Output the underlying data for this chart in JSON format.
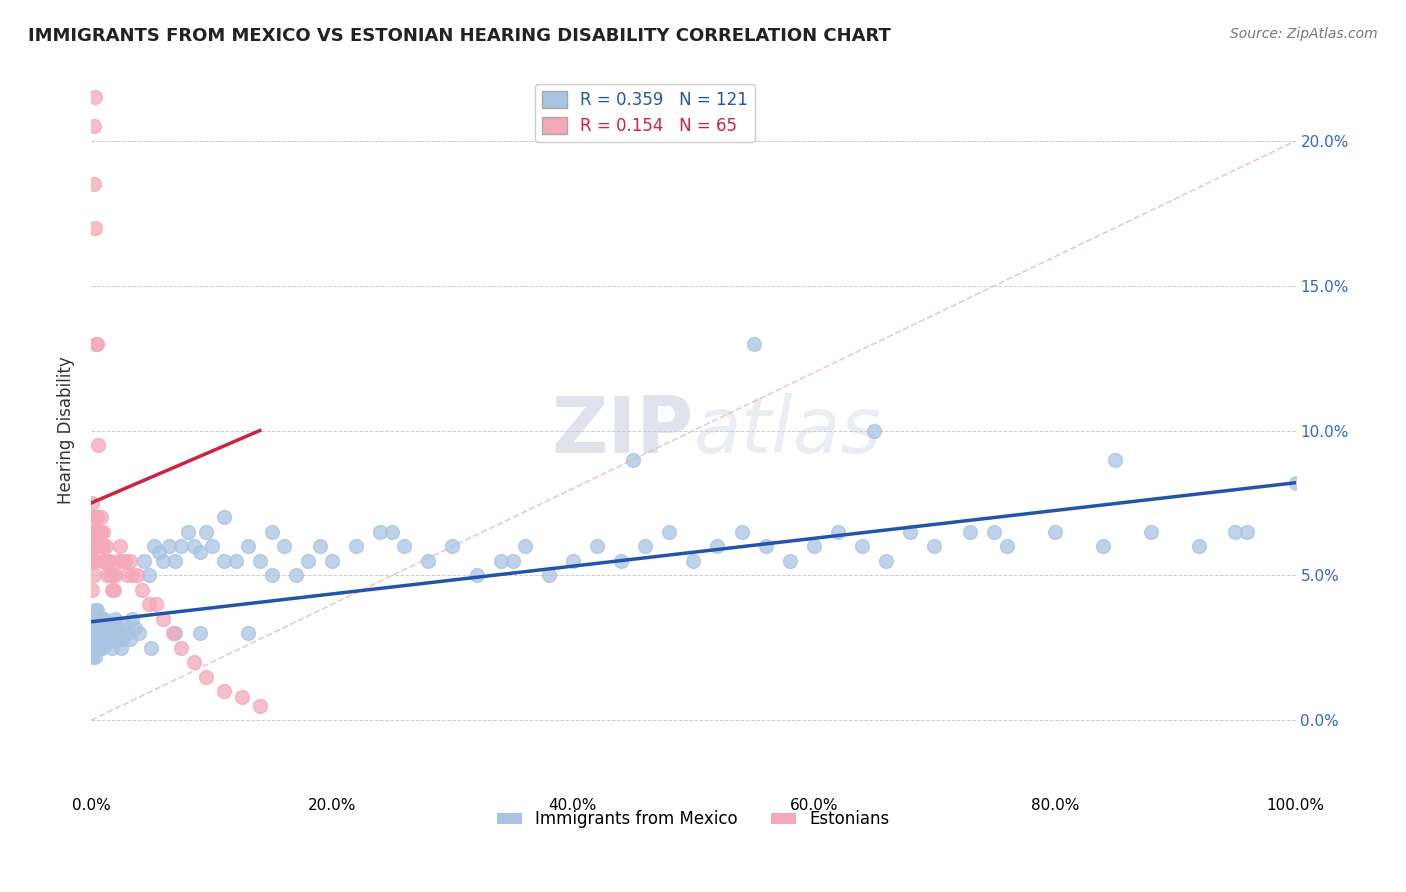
{
  "title": "IMMIGRANTS FROM MEXICO VS ESTONIAN HEARING DISABILITY CORRELATION CHART",
  "source_text": "Source: ZipAtlas.com",
  "ylabel": "Hearing Disability",
  "xlim": [
    0,
    1.0
  ],
  "ylim": [
    -0.025,
    0.225
  ],
  "xticks": [
    0.0,
    0.2,
    0.4,
    0.6,
    0.8,
    1.0
  ],
  "xticklabels": [
    "0.0%",
    "20.0%",
    "40.0%",
    "60.0%",
    "80.0%",
    "100.0%"
  ],
  "yticks_left": [
    0.0,
    0.05,
    0.1,
    0.15,
    0.2
  ],
  "yticklabels_left": [
    "",
    "",
    "",
    "",
    ""
  ],
  "yticks_right": [
    0.0,
    0.05,
    0.1,
    0.15,
    0.2
  ],
  "yticklabels_right": [
    "0.0%",
    "5.0%",
    "10.0%",
    "15.0%",
    "20.0%"
  ],
  "blue_R": 0.359,
  "blue_N": 121,
  "pink_R": 0.154,
  "pink_N": 65,
  "blue_color": "#a8c4e2",
  "pink_color": "#f4a8b8",
  "blue_line_color": "#2255aa",
  "pink_line_color": "#cc2244",
  "diagonal_color": "#f0c8cc",
  "legend_label_blue": "Immigrants from Mexico",
  "legend_label_pink": "Estonians",
  "watermark_zip": "ZIP",
  "watermark_atlas": "atlas",
  "blue_line_x": [
    0.0,
    1.0
  ],
  "blue_line_y": [
    0.034,
    0.082
  ],
  "pink_line_x": [
    0.0,
    0.14
  ],
  "pink_line_y": [
    0.075,
    0.1
  ],
  "blue_scatter_x": [
    0.001,
    0.001,
    0.001,
    0.001,
    0.001,
    0.002,
    0.002,
    0.002,
    0.002,
    0.003,
    0.003,
    0.003,
    0.003,
    0.004,
    0.004,
    0.004,
    0.005,
    0.005,
    0.005,
    0.006,
    0.006,
    0.007,
    0.007,
    0.008,
    0.008,
    0.009,
    0.009,
    0.01,
    0.01,
    0.011,
    0.012,
    0.013,
    0.014,
    0.015,
    0.016,
    0.017,
    0.018,
    0.019,
    0.02,
    0.021,
    0.022,
    0.023,
    0.024,
    0.025,
    0.026,
    0.028,
    0.03,
    0.032,
    0.034,
    0.036,
    0.04,
    0.044,
    0.048,
    0.052,
    0.056,
    0.06,
    0.065,
    0.07,
    0.075,
    0.08,
    0.085,
    0.09,
    0.095,
    0.1,
    0.11,
    0.12,
    0.13,
    0.14,
    0.15,
    0.16,
    0.17,
    0.18,
    0.19,
    0.2,
    0.22,
    0.24,
    0.26,
    0.28,
    0.3,
    0.32,
    0.34,
    0.36,
    0.38,
    0.4,
    0.42,
    0.44,
    0.46,
    0.48,
    0.5,
    0.52,
    0.54,
    0.56,
    0.58,
    0.6,
    0.62,
    0.64,
    0.66,
    0.68,
    0.7,
    0.73,
    0.76,
    0.8,
    0.84,
    0.88,
    0.92,
    0.96,
    1.0,
    0.45,
    0.55,
    0.65,
    0.75,
    0.85,
    0.95,
    0.35,
    0.25,
    0.15,
    0.05,
    0.07,
    0.09,
    0.11,
    0.13
  ],
  "blue_scatter_y": [
    0.03,
    0.025,
    0.035,
    0.028,
    0.022,
    0.032,
    0.027,
    0.033,
    0.028,
    0.03,
    0.025,
    0.038,
    0.022,
    0.035,
    0.028,
    0.03,
    0.032,
    0.025,
    0.038,
    0.03,
    0.027,
    0.033,
    0.025,
    0.035,
    0.028,
    0.03,
    0.025,
    0.032,
    0.028,
    0.035,
    0.03,
    0.028,
    0.033,
    0.027,
    0.03,
    0.025,
    0.032,
    0.028,
    0.035,
    0.03,
    0.028,
    0.032,
    0.03,
    0.025,
    0.028,
    0.033,
    0.03,
    0.028,
    0.035,
    0.032,
    0.03,
    0.055,
    0.05,
    0.06,
    0.058,
    0.055,
    0.06,
    0.055,
    0.06,
    0.065,
    0.06,
    0.058,
    0.065,
    0.06,
    0.07,
    0.055,
    0.06,
    0.055,
    0.065,
    0.06,
    0.05,
    0.055,
    0.06,
    0.055,
    0.06,
    0.065,
    0.06,
    0.055,
    0.06,
    0.05,
    0.055,
    0.06,
    0.05,
    0.055,
    0.06,
    0.055,
    0.06,
    0.065,
    0.055,
    0.06,
    0.065,
    0.06,
    0.055,
    0.06,
    0.065,
    0.06,
    0.055,
    0.065,
    0.06,
    0.065,
    0.06,
    0.065,
    0.06,
    0.065,
    0.06,
    0.065,
    0.082,
    0.09,
    0.13,
    0.1,
    0.065,
    0.09,
    0.065,
    0.055,
    0.065,
    0.05,
    0.025,
    0.03,
    0.03,
    0.055,
    0.03
  ],
  "pink_scatter_x": [
    0.001,
    0.001,
    0.001,
    0.001,
    0.001,
    0.002,
    0.002,
    0.002,
    0.002,
    0.003,
    0.003,
    0.003,
    0.003,
    0.004,
    0.004,
    0.004,
    0.005,
    0.005,
    0.005,
    0.006,
    0.006,
    0.007,
    0.007,
    0.008,
    0.008,
    0.009,
    0.009,
    0.01,
    0.01,
    0.011,
    0.012,
    0.013,
    0.014,
    0.015,
    0.016,
    0.017,
    0.018,
    0.019,
    0.02,
    0.022,
    0.024,
    0.026,
    0.028,
    0.03,
    0.032,
    0.034,
    0.038,
    0.042,
    0.048,
    0.054,
    0.06,
    0.068,
    0.075,
    0.085,
    0.095,
    0.11,
    0.125,
    0.14,
    0.002,
    0.002,
    0.003,
    0.003,
    0.004,
    0.005,
    0.006
  ],
  "pink_scatter_y": [
    0.065,
    0.055,
    0.075,
    0.06,
    0.045,
    0.055,
    0.07,
    0.065,
    0.05,
    0.06,
    0.07,
    0.065,
    0.055,
    0.06,
    0.065,
    0.07,
    0.06,
    0.065,
    0.07,
    0.065,
    0.06,
    0.065,
    0.06,
    0.07,
    0.065,
    0.06,
    0.055,
    0.065,
    0.06,
    0.055,
    0.06,
    0.05,
    0.055,
    0.055,
    0.05,
    0.045,
    0.05,
    0.045,
    0.05,
    0.055,
    0.06,
    0.055,
    0.055,
    0.05,
    0.055,
    0.05,
    0.05,
    0.045,
    0.04,
    0.04,
    0.035,
    0.03,
    0.025,
    0.02,
    0.015,
    0.01,
    0.008,
    0.005,
    0.185,
    0.205,
    0.215,
    0.17,
    0.13,
    0.13,
    0.095
  ]
}
